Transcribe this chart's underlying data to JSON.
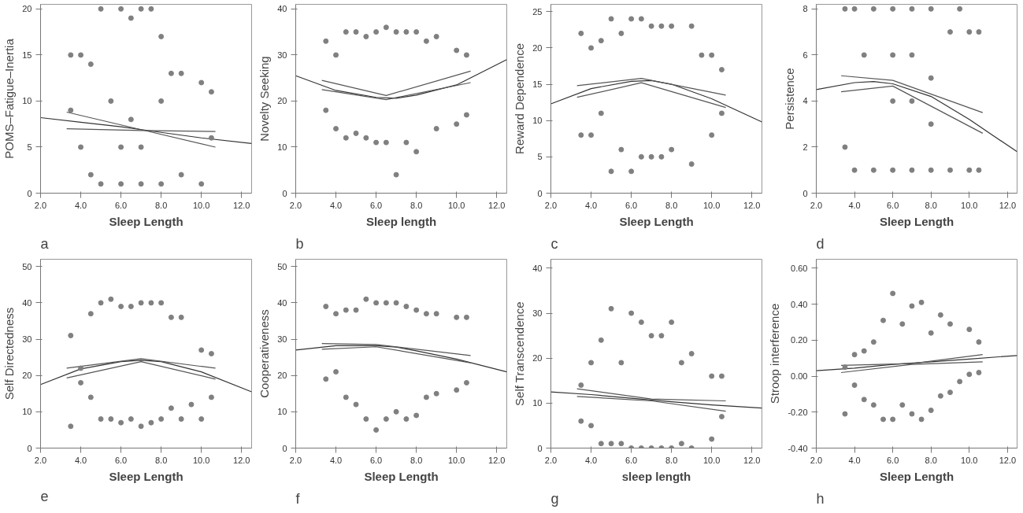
{
  "chart_data": [
    {
      "type": "scatter",
      "xlabel": "Sleep Length",
      "ylabel": "POMS–Fatigue–Inertia",
      "annotations": [
        "a"
      ],
      "xlim": [
        2,
        12.5
      ],
      "ylim": [
        0,
        20.5
      ],
      "xticks": [
        {
          "value": 2,
          "label": "2.0"
        },
        {
          "value": 4,
          "label": "4.0"
        },
        {
          "value": 6,
          "label": "6.0"
        },
        {
          "value": 8,
          "label": "8.0"
        },
        {
          "value": 10,
          "label": "10.0"
        },
        {
          "value": 12,
          "label": "12.0"
        }
      ],
      "yticks": [
        0,
        5,
        10,
        15,
        20
      ],
      "series": [
        {
          "marker": "circle",
          "color": "#808080",
          "x": [
            3.5,
            3.5,
            4,
            4,
            4.5,
            4.5,
            5,
            5,
            5.5,
            6,
            6,
            6,
            6.5,
            6.5,
            7,
            7,
            7,
            7.5,
            8,
            8,
            8,
            8.5,
            9,
            9,
            10,
            10,
            10.5,
            10.5
          ],
          "values": [
            15,
            9,
            15,
            5,
            14,
            2,
            20,
            1,
            10,
            20,
            1,
            5,
            19,
            8,
            20,
            1,
            5,
            20,
            17,
            1,
            10,
            13,
            13,
            2,
            12,
            1,
            11,
            6
          ]
        },
        {
          "type": "line",
          "color": "#333333",
          "x": [
            2,
            4,
            6,
            8,
            10,
            12.5
          ],
          "values": [
            8.2,
            7.7,
            7.2,
            6.6,
            6.0,
            5.4
          ]
        },
        {
          "type": "line",
          "color": "#555555",
          "x": [
            3.3,
            7,
            10.7
          ],
          "values": [
            8.8,
            6.9,
            5.0
          ]
        },
        {
          "type": "line",
          "color": "#555555",
          "x": [
            3.3,
            7,
            10.7
          ],
          "values": [
            7.0,
            6.8,
            6.7
          ]
        }
      ]
    },
    {
      "type": "scatter",
      "xlabel": "Sleep length",
      "ylabel": "Novelty Seeking",
      "annotations": [
        "b"
      ],
      "xlim": [
        2,
        12.5
      ],
      "ylim": [
        0,
        41
      ],
      "xticks": [
        {
          "value": 2,
          "label": "2.0"
        },
        {
          "value": 4,
          "label": "4.0"
        },
        {
          "value": 6,
          "label": "6.0"
        },
        {
          "value": 8,
          "label": "8.0"
        },
        {
          "value": 10,
          "label": "10.0"
        },
        {
          "value": 12,
          "label": "12.0"
        }
      ],
      "yticks": [
        0,
        10,
        20,
        30,
        40
      ],
      "series": [
        {
          "marker": "circle",
          "color": "#808080",
          "x": [
            3.5,
            3.5,
            4,
            4,
            4.5,
            4.5,
            5,
            5,
            5.5,
            5.5,
            6,
            6,
            6.5,
            6.5,
            7,
            7,
            7.5,
            7.5,
            8,
            8,
            8.5,
            9,
            9,
            10,
            10,
            10.5,
            10.5
          ],
          "values": [
            33,
            18,
            30,
            14,
            35,
            12,
            35,
            13,
            34,
            12,
            35,
            11,
            36,
            11,
            35,
            4,
            35,
            11,
            35,
            9,
            33,
            34,
            14,
            31,
            15,
            30,
            17
          ]
        },
        {
          "type": "line",
          "color": "#333333",
          "x": [
            2,
            4,
            6,
            7,
            8,
            10,
            12.5
          ],
          "values": [
            25.5,
            22.3,
            20.8,
            20.6,
            21.3,
            23.5,
            29
          ]
        },
        {
          "type": "line",
          "color": "#555555",
          "x": [
            3.3,
            6.5,
            10.7
          ],
          "values": [
            24.5,
            21.2,
            26.5
          ]
        },
        {
          "type": "line",
          "color": "#555555",
          "x": [
            3.3,
            6.5,
            10.7
          ],
          "values": [
            22.5,
            20.3,
            24
          ]
        }
      ]
    },
    {
      "type": "scatter",
      "xlabel": "Sleep Length",
      "ylabel": "Reward Dependence",
      "annotations": [
        "c"
      ],
      "xlim": [
        2,
        12.5
      ],
      "ylim": [
        0,
        26
      ],
      "xticks": [
        {
          "value": 2,
          "label": "2.0"
        },
        {
          "value": 4,
          "label": "4.0"
        },
        {
          "value": 6,
          "label": "6.0"
        },
        {
          "value": 8,
          "label": "8.0"
        },
        {
          "value": 10,
          "label": "10.0"
        },
        {
          "value": 12,
          "label": "12.0"
        }
      ],
      "yticks": [
        0,
        5,
        10,
        15,
        20,
        25
      ],
      "series": [
        {
          "marker": "circle",
          "color": "#808080",
          "x": [
            3.5,
            3.5,
            4,
            4,
            4.5,
            4.5,
            5,
            5,
            5.5,
            5.5,
            6,
            6,
            6.5,
            6.5,
            7,
            7,
            7.5,
            7.5,
            8,
            8,
            9,
            9,
            9.5,
            10,
            10,
            10.5,
            10.5
          ],
          "values": [
            22,
            8,
            20,
            8,
            21,
            11,
            24,
            3,
            22,
            6,
            24,
            3,
            24,
            5,
            23,
            5,
            23,
            5,
            23,
            6,
            23,
            4,
            19,
            19,
            8,
            17,
            11
          ]
        },
        {
          "type": "line",
          "color": "#333333",
          "x": [
            2,
            4,
            6,
            7,
            8,
            10,
            12.5
          ],
          "values": [
            12.3,
            14.4,
            15.4,
            15.5,
            15.0,
            13,
            9.8
          ]
        },
        {
          "type": "line",
          "color": "#555555",
          "x": [
            3.3,
            6.5,
            10.7
          ],
          "values": [
            14.8,
            15.8,
            13.5
          ]
        },
        {
          "type": "line",
          "color": "#555555",
          "x": [
            3.3,
            6.5,
            10.7
          ],
          "values": [
            13.2,
            15.2,
            11.8
          ]
        }
      ]
    },
    {
      "type": "scatter",
      "xlabel": "Sleep Length",
      "ylabel": "Persistence",
      "annotations": [
        "d"
      ],
      "xlim": [
        2,
        12.5
      ],
      "ylim": [
        0,
        8.2
      ],
      "xticks": [
        {
          "value": 2,
          "label": "2.0"
        },
        {
          "value": 4,
          "label": "4.0"
        },
        {
          "value": 6,
          "label": "6.0"
        },
        {
          "value": 8,
          "label": "8.0"
        },
        {
          "value": 10,
          "label": "10.0"
        },
        {
          "value": 12,
          "label": "12.0"
        }
      ],
      "yticks": [
        0,
        2,
        4,
        6,
        8
      ],
      "series": [
        {
          "marker": "circle",
          "color": "#808080",
          "x": [
            3.5,
            3.5,
            4,
            4,
            5,
            5,
            6,
            6,
            7,
            7,
            8,
            8,
            9,
            9,
            10,
            10,
            10.5,
            10.5,
            9.5,
            4.5,
            6,
            7,
            8,
            6,
            7,
            8
          ],
          "values": [
            8,
            2,
            8,
            1,
            8,
            1,
            8,
            1,
            8,
            1,
            8,
            1,
            7,
            1,
            7,
            1,
            7,
            1,
            8,
            6,
            6,
            6,
            5,
            4,
            4,
            3
          ]
        },
        {
          "type": "line",
          "color": "#333333",
          "x": [
            2,
            4,
            5,
            6,
            8,
            10,
            12.5
          ],
          "values": [
            4.5,
            4.8,
            4.85,
            4.75,
            4.2,
            3.2,
            1.8
          ]
        },
        {
          "type": "line",
          "color": "#555555",
          "x": [
            3.3,
            6,
            10.7
          ],
          "values": [
            5.1,
            4.9,
            3.5
          ]
        },
        {
          "type": "line",
          "color": "#555555",
          "x": [
            3.3,
            6,
            10.7
          ],
          "values": [
            4.4,
            4.65,
            2.6
          ]
        }
      ]
    },
    {
      "type": "scatter",
      "xlabel": "Sleep Length",
      "ylabel": "Self Directedness",
      "annotations": [
        "e"
      ],
      "xlim": [
        2,
        12.5
      ],
      "ylim": [
        0,
        52
      ],
      "xticks": [
        {
          "value": 2,
          "label": "2.0"
        },
        {
          "value": 4,
          "label": "4.0"
        },
        {
          "value": 6,
          "label": "6.0"
        },
        {
          "value": 8,
          "label": "8.0"
        },
        {
          "value": 10,
          "label": "10.0"
        },
        {
          "value": 12,
          "label": "12.0"
        }
      ],
      "yticks": [
        0,
        10,
        20,
        30,
        40,
        50
      ],
      "series": [
        {
          "marker": "circle",
          "color": "#808080",
          "x": [
            3.5,
            3.5,
            4,
            4,
            4.5,
            4.5,
            5,
            5,
            5.5,
            5.5,
            6,
            6,
            6.5,
            6.5,
            7,
            7,
            7.5,
            7.5,
            8,
            8,
            8.5,
            8.5,
            9,
            9,
            9.5,
            10,
            10,
            10.5,
            10.5
          ],
          "values": [
            31,
            6,
            22,
            18,
            37,
            14,
            40,
            8,
            41,
            8,
            39,
            7,
            39,
            8,
            40,
            6,
            40,
            7,
            40,
            8,
            36,
            11,
            36,
            8,
            12,
            27,
            8,
            26,
            14
          ]
        },
        {
          "type": "line",
          "color": "#333333",
          "x": [
            2,
            4,
            6,
            7,
            8,
            10,
            12.5
          ],
          "values": [
            17.5,
            21.8,
            23.8,
            24.2,
            23.8,
            21,
            15.5
          ]
        },
        {
          "type": "line",
          "color": "#555555",
          "x": [
            3.3,
            7,
            10.7
          ],
          "values": [
            22,
            24.6,
            22
          ]
        },
        {
          "type": "line",
          "color": "#555555",
          "x": [
            3.3,
            7,
            10.7
          ],
          "values": [
            19.3,
            23.8,
            19
          ]
        }
      ]
    },
    {
      "type": "scatter",
      "xlabel": "Sleep Length",
      "ylabel": "Cooperativeness",
      "annotations": [
        "f"
      ],
      "xlim": [
        2,
        12.5
      ],
      "ylim": [
        0,
        52
      ],
      "xticks": [
        {
          "value": 2,
          "label": "2.0"
        },
        {
          "value": 4,
          "label": "4.0"
        },
        {
          "value": 6,
          "label": "6.0"
        },
        {
          "value": 8,
          "label": "8.0"
        },
        {
          "value": 10,
          "label": "10.0"
        },
        {
          "value": 12,
          "label": "12.0"
        }
      ],
      "yticks": [
        0,
        10,
        20,
        30,
        40,
        50
      ],
      "series": [
        {
          "marker": "circle",
          "color": "#808080",
          "x": [
            3.5,
            3.5,
            4,
            4,
            4.5,
            4.5,
            5,
            5,
            5.5,
            5.5,
            6,
            6,
            6.5,
            6.5,
            7,
            7,
            7.5,
            7.5,
            8,
            8,
            8.5,
            8.5,
            9,
            9,
            10,
            10,
            10.5,
            10.5
          ],
          "values": [
            39,
            19,
            37,
            21,
            38,
            14,
            38,
            12,
            41,
            8,
            40,
            5,
            40,
            8,
            40,
            10,
            39,
            8,
            38,
            9,
            37,
            14,
            37,
            15,
            36,
            16,
            36,
            18
          ]
        },
        {
          "type": "line",
          "color": "#333333",
          "x": [
            2,
            4,
            6,
            7,
            8,
            10,
            12.5
          ],
          "values": [
            27,
            28.2,
            28.2,
            27.8,
            26.8,
            24.5,
            21
          ]
        },
        {
          "type": "line",
          "color": "#555555",
          "x": [
            3.3,
            6,
            10.7
          ],
          "values": [
            28.8,
            28.5,
            25.5
          ]
        },
        {
          "type": "line",
          "color": "#555555",
          "x": [
            3.3,
            6,
            10.7
          ],
          "values": [
            27.2,
            27.9,
            23.5
          ]
        }
      ]
    },
    {
      "type": "scatter",
      "xlabel": "sleep length",
      "ylabel": "Self Transcendence",
      "annotations": [
        "g"
      ],
      "xlim": [
        2,
        12.5
      ],
      "ylim": [
        0,
        42
      ],
      "xticks": [
        {
          "value": 2,
          "label": "2.0"
        },
        {
          "value": 4,
          "label": "4.0"
        },
        {
          "value": 6,
          "label": "6.0"
        },
        {
          "value": 8,
          "label": "8.0"
        },
        {
          "value": 10,
          "label": "10.0"
        },
        {
          "value": 12,
          "label": "12.0"
        }
      ],
      "yticks": [
        0,
        10,
        20,
        30,
        40
      ],
      "series": [
        {
          "marker": "circle",
          "color": "#808080",
          "x": [
            3.5,
            3.5,
            4,
            4,
            4.5,
            4.5,
            5,
            5,
            5.5,
            5.5,
            6,
            6,
            6.5,
            6.5,
            7,
            7,
            7.5,
            7.5,
            8,
            8,
            8.5,
            8.5,
            9,
            9,
            10,
            10,
            10.5,
            10.5
          ],
          "values": [
            14,
            6,
            19,
            5,
            24,
            1,
            31,
            1,
            19,
            1,
            30,
            0,
            28,
            0,
            25,
            0,
            25,
            0,
            28,
            0,
            19,
            1,
            21,
            0,
            16,
            2,
            16,
            7
          ]
        },
        {
          "type": "line",
          "color": "#333333",
          "x": [
            2,
            4,
            6,
            8,
            10,
            12.5
          ],
          "values": [
            12.5,
            11.9,
            11.1,
            10.3,
            9.6,
            8.9
          ]
        },
        {
          "type": "line",
          "color": "#555555",
          "x": [
            3.3,
            7,
            10.7
          ],
          "values": [
            13.2,
            10.9,
            10.5
          ]
        },
        {
          "type": "line",
          "color": "#555555",
          "x": [
            3.3,
            7,
            10.7
          ],
          "values": [
            11.5,
            10.5,
            8.2
          ]
        }
      ]
    },
    {
      "type": "scatter",
      "xlabel": "Sleep Length",
      "ylabel": "Stroop interference",
      "annotations": [
        "h"
      ],
      "xlim": [
        2,
        12.5
      ],
      "ylim": [
        -0.4,
        0.65
      ],
      "xticks": [
        {
          "value": 2,
          "label": "2.0"
        },
        {
          "value": 4,
          "label": "4.0"
        },
        {
          "value": 6,
          "label": "6.0"
        },
        {
          "value": 8,
          "label": "8.0"
        },
        {
          "value": 10,
          "label": "10.0"
        },
        {
          "value": 12,
          "label": "12.0"
        }
      ],
      "yticks": [
        {
          "value": -0.4,
          "label": "-0.40"
        },
        {
          "value": -0.2,
          "label": "-0.20"
        },
        {
          "value": 0,
          "label": "0.00"
        },
        {
          "value": 0.2,
          "label": "0.20"
        },
        {
          "value": 0.4,
          "label": "0.40"
        },
        {
          "value": 0.6,
          "label": "0.60"
        }
      ],
      "series": [
        {
          "marker": "circle",
          "color": "#808080",
          "x": [
            3.5,
            3.5,
            4,
            4,
            4.5,
            4.5,
            5,
            5,
            5.5,
            5.5,
            6,
            6,
            6.5,
            6.5,
            7,
            7,
            7.5,
            7.5,
            8,
            8,
            8.5,
            8.5,
            9,
            9,
            9.5,
            10,
            10,
            10.5,
            10.5
          ],
          "values": [
            0.05,
            -0.21,
            0.12,
            -0.05,
            0.14,
            -0.13,
            0.19,
            -0.16,
            0.31,
            -0.24,
            0.46,
            -0.24,
            0.29,
            -0.16,
            0.39,
            -0.21,
            0.41,
            -0.24,
            0.24,
            -0.19,
            0.34,
            -0.11,
            0.29,
            -0.09,
            -0.03,
            0.26,
            0.01,
            0.19,
            0.02
          ]
        },
        {
          "type": "line",
          "color": "#333333",
          "x": [
            2,
            4,
            6,
            8,
            10,
            12.5
          ],
          "values": [
            0.03,
            0.045,
            0.065,
            0.08,
            0.095,
            0.115
          ]
        },
        {
          "type": "line",
          "color": "#555555",
          "x": [
            3.3,
            7,
            10.7
          ],
          "values": [
            0.06,
            0.07,
            0.12
          ]
        },
        {
          "type": "line",
          "color": "#555555",
          "x": [
            3.3,
            7,
            10.7
          ],
          "values": [
            0.02,
            0.065,
            0.08
          ]
        }
      ]
    }
  ]
}
